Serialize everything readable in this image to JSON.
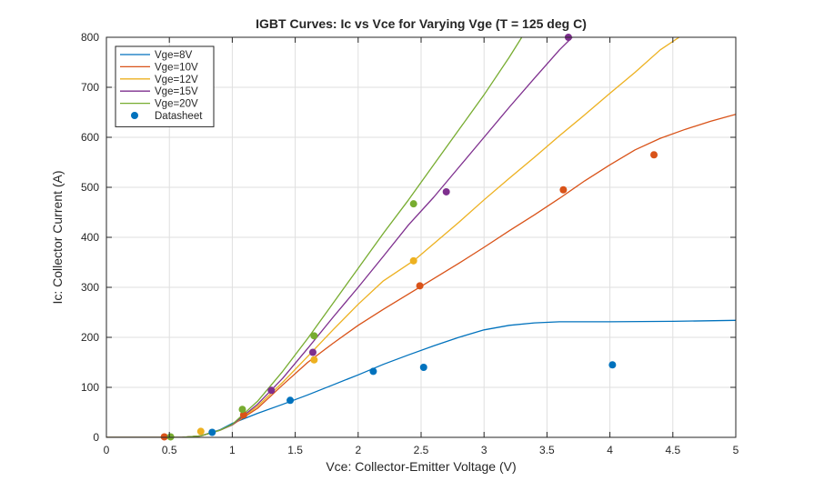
{
  "chart_data": {
    "type": "line",
    "title": "IGBT Curves: Ic vs Vce for Varying Vge  (T = 125 deg C)",
    "xlabel": "Vce: Collector-Emitter Voltage (V)",
    "ylabel": "Ic: Collector Current (A)",
    "xlim": [
      0,
      5
    ],
    "ylim": [
      0,
      800
    ],
    "x_ticks": [
      0,
      0.5,
      1,
      1.5,
      2,
      2.5,
      3,
      3.5,
      4,
      4.5,
      5
    ],
    "x_tick_labels": [
      "0",
      "0.5",
      "1",
      "1.5",
      "2",
      "2.5",
      "3",
      "3.5",
      "4",
      "4.5",
      "5"
    ],
    "y_ticks": [
      0,
      100,
      200,
      300,
      400,
      500,
      600,
      700,
      800
    ],
    "y_tick_labels": [
      "0",
      "100",
      "200",
      "300",
      "400",
      "500",
      "600",
      "700",
      "800"
    ],
    "grid": true,
    "legend_position": "top-left",
    "series": [
      {
        "name": "Vge=8V",
        "color": "#0072BD",
        "points": [
          [
            0,
            0
          ],
          [
            0.6,
            0
          ],
          [
            0.75,
            3
          ],
          [
            0.9,
            15
          ],
          [
            1.0,
            28
          ],
          [
            1.2,
            48
          ],
          [
            1.4,
            66
          ],
          [
            1.6,
            85
          ],
          [
            1.8,
            105
          ],
          [
            2.0,
            125
          ],
          [
            2.2,
            146
          ],
          [
            2.4,
            165
          ],
          [
            2.6,
            183
          ],
          [
            2.8,
            200
          ],
          [
            3.0,
            215
          ],
          [
            3.2,
            224
          ],
          [
            3.4,
            229
          ],
          [
            3.6,
            231
          ],
          [
            4.0,
            231
          ],
          [
            4.5,
            232
          ],
          [
            5.0,
            234
          ]
        ],
        "markers": [
          [
            0.84,
            10
          ],
          [
            1.46,
            74
          ],
          [
            2.12,
            132
          ],
          [
            2.52,
            140
          ],
          [
            4.02,
            145
          ]
        ]
      },
      {
        "name": "Vge=10V",
        "color": "#D95319",
        "points": [
          [
            0,
            0
          ],
          [
            0.6,
            0
          ],
          [
            0.75,
            3
          ],
          [
            0.9,
            14
          ],
          [
            1.0,
            25
          ],
          [
            1.2,
            58
          ],
          [
            1.4,
            105
          ],
          [
            1.6,
            150
          ],
          [
            1.8,
            188
          ],
          [
            2.0,
            224
          ],
          [
            2.2,
            256
          ],
          [
            2.5,
            302
          ],
          [
            2.8,
            348
          ],
          [
            3.0,
            380
          ],
          [
            3.2,
            413
          ],
          [
            3.4,
            445
          ],
          [
            3.6,
            478
          ],
          [
            3.8,
            513
          ],
          [
            4.0,
            545
          ],
          [
            4.2,
            575
          ],
          [
            4.4,
            598
          ],
          [
            4.6,
            616
          ],
          [
            4.8,
            632
          ],
          [
            5.0,
            646
          ]
        ],
        "markers": [
          [
            0.46,
            1
          ],
          [
            1.09,
            45
          ],
          [
            2.49,
            303
          ],
          [
            3.63,
            495
          ],
          [
            4.35,
            565
          ]
        ]
      },
      {
        "name": "Vge=12V",
        "color": "#EDB120",
        "points": [
          [
            0,
            0
          ],
          [
            0.6,
            0
          ],
          [
            0.75,
            3
          ],
          [
            0.9,
            14
          ],
          [
            1.0,
            25
          ],
          [
            1.2,
            62
          ],
          [
            1.4,
            110
          ],
          [
            1.6,
            162
          ],
          [
            1.8,
            215
          ],
          [
            2.0,
            266
          ],
          [
            2.2,
            313
          ],
          [
            2.45,
            355
          ],
          [
            2.8,
            430
          ],
          [
            3.0,
            475
          ],
          [
            3.2,
            518
          ],
          [
            3.4,
            560
          ],
          [
            3.6,
            603
          ],
          [
            3.8,
            645
          ],
          [
            4.0,
            688
          ],
          [
            4.2,
            730
          ],
          [
            4.4,
            775
          ],
          [
            4.55,
            800
          ]
        ],
        "markers": [
          [
            0.75,
            12
          ],
          [
            1.65,
            155
          ],
          [
            2.44,
            353
          ]
        ]
      },
      {
        "name": "Vge=15V",
        "color": "#7E2F8E",
        "points": [
          [
            0,
            0
          ],
          [
            0.6,
            0
          ],
          [
            0.75,
            3
          ],
          [
            0.9,
            14
          ],
          [
            1.0,
            25
          ],
          [
            1.2,
            66
          ],
          [
            1.4,
            118
          ],
          [
            1.6,
            178
          ],
          [
            1.8,
            240
          ],
          [
            2.0,
            300
          ],
          [
            2.2,
            362
          ],
          [
            2.4,
            425
          ],
          [
            2.6,
            480
          ],
          [
            2.8,
            540
          ],
          [
            3.0,
            600
          ],
          [
            3.2,
            660
          ],
          [
            3.4,
            718
          ],
          [
            3.6,
            775
          ],
          [
            3.7,
            800
          ]
        ],
        "markers": [
          [
            1.31,
            94
          ],
          [
            1.64,
            170
          ],
          [
            2.7,
            491
          ],
          [
            3.67,
            800
          ]
        ]
      },
      {
        "name": "Vge=20V",
        "color": "#77AC30",
        "points": [
          [
            0,
            0
          ],
          [
            0.6,
            0
          ],
          [
            0.75,
            3
          ],
          [
            0.9,
            14
          ],
          [
            1.0,
            26
          ],
          [
            1.2,
            72
          ],
          [
            1.4,
            132
          ],
          [
            1.6,
            198
          ],
          [
            1.8,
            268
          ],
          [
            2.0,
            338
          ],
          [
            2.2,
            408
          ],
          [
            2.4,
            475
          ],
          [
            2.6,
            545
          ],
          [
            2.8,
            615
          ],
          [
            3.0,
            685
          ],
          [
            3.2,
            760
          ],
          [
            3.3,
            800
          ]
        ],
        "markers": [
          [
            0.51,
            1
          ],
          [
            1.08,
            56
          ],
          [
            1.65,
            203
          ],
          [
            2.44,
            467
          ]
        ]
      }
    ],
    "datasheet_legend": {
      "name": "Datasheet",
      "color": "#0072BD"
    }
  }
}
